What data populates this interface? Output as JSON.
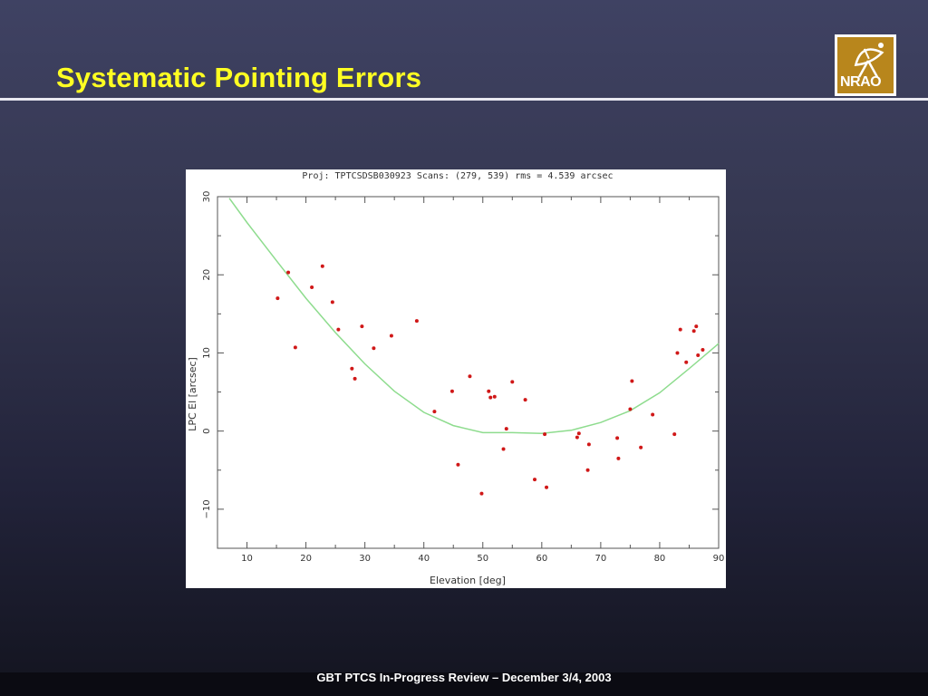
{
  "slide": {
    "title": "Systematic Pointing Errors",
    "footer": "GBT PTCS In-Progress  Review – December 3/4, 2003",
    "logo_text": "NRAO"
  },
  "colors": {
    "title": "#ffff22",
    "fit_curve": "#8edc8e",
    "points": "#d01818"
  },
  "chart_data": {
    "type": "scatter",
    "title": "Proj: TPTCSDSB030923   Scans: (279, 539)    rms =   4.539  arcsec",
    "xlabel": "Elevation [deg]",
    "ylabel": "LPC El [arcsec]",
    "xlim": [
      5,
      90
    ],
    "ylim": [
      -15,
      30
    ],
    "xticks": [
      10,
      20,
      30,
      40,
      50,
      60,
      70,
      80,
      90
    ],
    "yticks": [
      -10,
      0,
      10,
      20,
      30
    ],
    "ytick_labels": [
      "−10",
      "0",
      "10",
      "20",
      "30"
    ],
    "grid": false,
    "series": [
      {
        "type": "scatter",
        "points": [
          [
            15.2,
            17.0
          ],
          [
            17.0,
            20.3
          ],
          [
            18.2,
            10.7
          ],
          [
            21.0,
            18.4
          ],
          [
            22.8,
            21.1
          ],
          [
            24.5,
            16.5
          ],
          [
            25.5,
            13.0
          ],
          [
            27.8,
            8.0
          ],
          [
            28.3,
            6.7
          ],
          [
            29.5,
            13.4
          ],
          [
            31.5,
            10.6
          ],
          [
            34.5,
            12.2
          ],
          [
            38.8,
            14.1
          ],
          [
            41.8,
            2.5
          ],
          [
            44.8,
            5.1
          ],
          [
            45.8,
            -4.3
          ],
          [
            47.8,
            7.0
          ],
          [
            49.8,
            -8.0
          ],
          [
            51.0,
            5.1
          ],
          [
            51.3,
            4.3
          ],
          [
            52.0,
            4.4
          ],
          [
            53.5,
            -2.3
          ],
          [
            54.0,
            0.3
          ],
          [
            55.0,
            6.3
          ],
          [
            57.2,
            4.0
          ],
          [
            58.8,
            -6.2
          ],
          [
            60.5,
            -0.4
          ],
          [
            60.8,
            -7.2
          ],
          [
            66.0,
            -0.8
          ],
          [
            66.3,
            -0.3
          ],
          [
            67.8,
            -5.0
          ],
          [
            68.0,
            -1.7
          ],
          [
            72.8,
            -0.9
          ],
          [
            73.0,
            -3.5
          ],
          [
            75.0,
            2.8
          ],
          [
            75.3,
            6.4
          ],
          [
            76.8,
            -2.1
          ],
          [
            78.8,
            2.1
          ],
          [
            82.5,
            -0.4
          ],
          [
            83.0,
            10.0
          ],
          [
            83.5,
            13.0
          ],
          [
            84.5,
            8.8
          ],
          [
            85.8,
            12.8
          ],
          [
            86.2,
            13.4
          ],
          [
            86.5,
            9.7
          ],
          [
            87.3,
            10.4
          ]
        ]
      },
      {
        "type": "line",
        "x": [
          7,
          10,
          15,
          20,
          25,
          30,
          35,
          40,
          45,
          50,
          55,
          60,
          65,
          70,
          75,
          80,
          85,
          90
        ],
        "y": [
          29.8,
          26.7,
          21.8,
          17.0,
          12.6,
          8.6,
          5.1,
          2.4,
          0.7,
          -0.2,
          -0.2,
          -0.3,
          0.1,
          1.1,
          2.6,
          4.9,
          8.0,
          11.2
        ]
      }
    ]
  }
}
